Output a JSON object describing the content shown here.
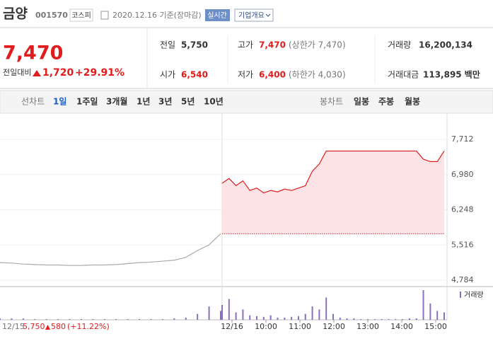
{
  "header": {
    "name": "금양",
    "code": "001570",
    "market": "코스피",
    "date": "2020.12.16 기준(장마감)",
    "realtime": "실시간",
    "company": "기업개요"
  },
  "summary": {
    "price": "7,470",
    "change_label": "전일대비",
    "change": "1,720",
    "change_rate": "+29.91%",
    "items": [
      {
        "label": "전일",
        "value": "5,750"
      },
      {
        "label": "고가",
        "value": "7,470",
        "note": "(상한가 7,470)"
      },
      {
        "label": "거래량",
        "value": "16,200,134"
      },
      {
        "label": "시가",
        "value": "6,540"
      },
      {
        "label": "저가",
        "value": "6,400",
        "note": "(하한가 4,030)"
      },
      {
        "label": "거래대금",
        "value": "113,895",
        "unit": "백만"
      }
    ]
  },
  "tabs": {
    "line": "선차트",
    "line_periods": [
      "1일",
      "1주일",
      "3개월",
      "1년",
      "3년",
      "5년",
      "10년"
    ],
    "candle": "봉차트",
    "candle_periods": [
      "일봉",
      "주봉",
      "월봉"
    ]
  },
  "chart_data": {
    "type": "line",
    "ylim": [
      4784,
      7712
    ],
    "yticks": [
      {
        "value": 7712,
        "label": "7,712"
      },
      {
        "value": 6980,
        "label": "6,980"
      },
      {
        "value": 6248,
        "label": "6,248"
      },
      {
        "value": 5516,
        "label": "5,516"
      },
      {
        "value": 4784,
        "label": "4,784"
      }
    ],
    "xticks": [
      "12/16",
      "10:00",
      "11:00",
      "12:00",
      "13:00",
      "14:00",
      "15:00"
    ],
    "base_value": 5750,
    "series": [
      {
        "color": "#aaaaaa",
        "values": [
          5150,
          5140,
          5120,
          5110,
          5100,
          5100,
          5090,
          5090,
          5100,
          5100,
          5110,
          5130,
          5150,
          5160,
          5180,
          5200,
          5260,
          5400,
          5520,
          5750
        ],
        "volume": [
          2,
          2,
          2,
          1,
          1,
          1,
          1,
          1,
          1,
          1,
          1,
          1,
          1,
          1,
          1,
          2,
          3,
          8,
          18,
          12
        ]
      },
      {
        "color": "#e01c1c",
        "fill": "#fde3e5",
        "values": [
          6800,
          6900,
          6750,
          6850,
          6650,
          6700,
          6600,
          6650,
          6620,
          6680,
          6650,
          6700,
          6750,
          7050,
          7200,
          7470,
          7470,
          7470,
          7470,
          7470,
          7470,
          7470,
          7470,
          7470,
          7470,
          7470,
          7470,
          7470,
          7470,
          7300,
          7250,
          7250,
          7470
        ],
        "volume": [
          20,
          28,
          10,
          14,
          6,
          5,
          4,
          6,
          3,
          3,
          4,
          5,
          8,
          18,
          14,
          30,
          8,
          3,
          2,
          2,
          1,
          1,
          1,
          1,
          1,
          1,
          1,
          2,
          2,
          40,
          22,
          12,
          10
        ]
      }
    ],
    "volume_label": "거래량",
    "volume_color": "#8a6fc0",
    "footer": {
      "date": "12/15",
      "price": "5,750",
      "change": "580",
      "rate": "(+11.22%)"
    }
  }
}
